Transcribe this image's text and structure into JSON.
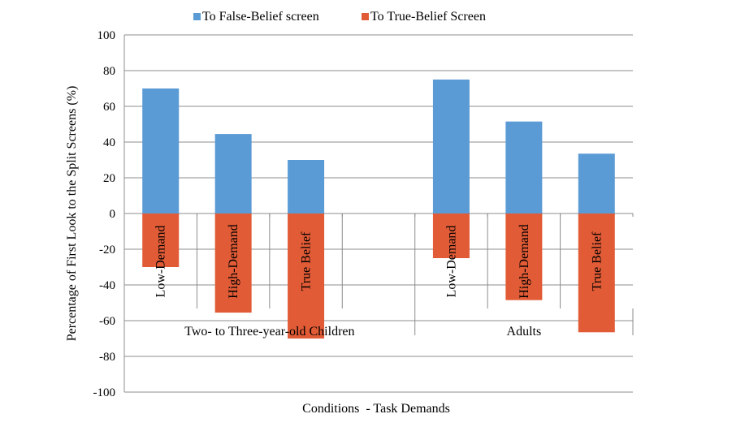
{
  "chart_data": {
    "type": "bar",
    "title": "",
    "xlabel": "Conditions  - Task Demands",
    "ylabel": "Percentage of First Look to the Split Screens (%)",
    "ylim": [
      -100,
      100
    ],
    "yticks": [
      100,
      80,
      60,
      40,
      20,
      0,
      -20,
      -40,
      -60,
      -80,
      -100
    ],
    "grid": true,
    "legend_position": "top",
    "groups": [
      {
        "label": "Two- to Three-year-old Children",
        "categories": [
          "Low-Demand",
          "High-Demand",
          "True Belief",
          ""
        ]
      },
      {
        "label": "Adults",
        "categories": [
          "Low-Demand",
          "High-Demand",
          "True Belief"
        ]
      }
    ],
    "categories": [
      "Low-Demand",
      "High-Demand",
      "True Belief",
      "",
      "Low-Demand",
      "High-Demand",
      "True Belief"
    ],
    "series": [
      {
        "name": "To False-Belief screen",
        "color": "#5B9BD5",
        "values": [
          70,
          44.5,
          30,
          null,
          75,
          51.5,
          33.5
        ]
      },
      {
        "name": "To True-Belief Screen",
        "color": "#E15B36",
        "values": [
          -30,
          -55.5,
          -70,
          null,
          -25,
          -48.5,
          -66.5
        ]
      }
    ]
  }
}
